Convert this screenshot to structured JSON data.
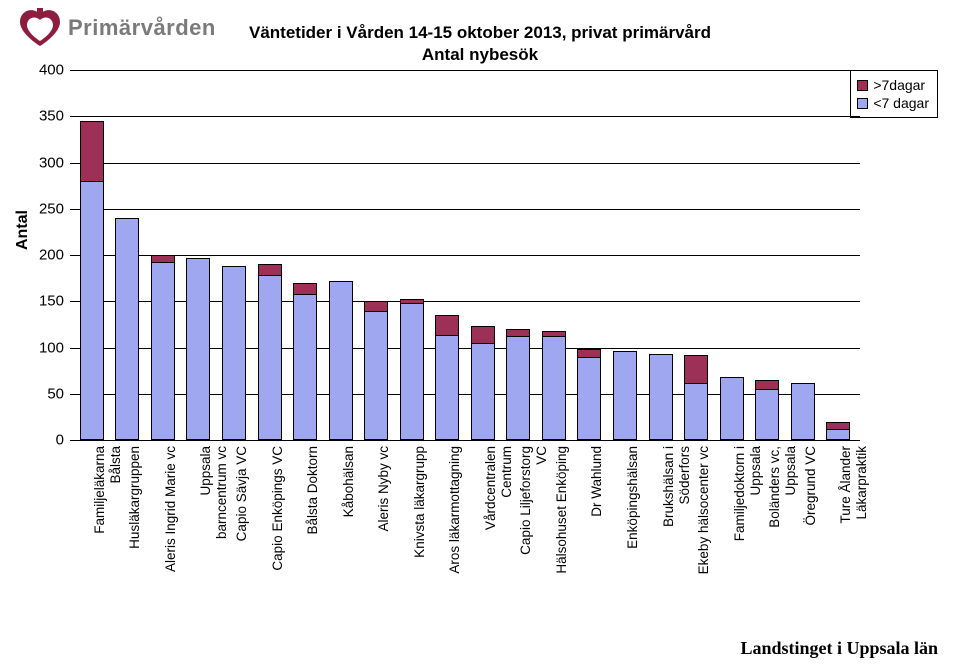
{
  "logo": {
    "text": "Primärvården",
    "color": "#7a7a7a",
    "icon_color": "#8c1d3f"
  },
  "title_line1": "Väntetider i Vården 14-15 oktober 2013, privat primärvård",
  "title_line2": "Antal nybesök",
  "legend": {
    "items": [
      {
        "label": ">7dagar",
        "color": "#9c3057"
      },
      {
        "label": "<7 dagar",
        "color": "#9ea7ef"
      }
    ]
  },
  "chart": {
    "type": "stacked-bar",
    "ylabel": "Antal",
    "ylim": [
      0,
      400
    ],
    "ytick_step": 50,
    "background_color": "#ffffff",
    "grid_color": "#000000",
    "bar_border_color": "#000000",
    "series_colors": {
      "lt7": "#9ea7ef",
      "gt7": "#9c3057"
    },
    "categories": [
      {
        "label": "Familjeläkarna\nBålsta",
        "lt7": 280,
        "gt7": 65
      },
      {
        "label": "Husläkargruppen",
        "lt7": 240,
        "gt7": 0
      },
      {
        "label": "Aleris Ingrid Marie vc",
        "lt7": 192,
        "gt7": 8
      },
      {
        "label": "Uppsala\nbarncentrum vc",
        "lt7": 197,
        "gt7": 0
      },
      {
        "label": "Capio Sävja VC",
        "lt7": 188,
        "gt7": 0
      },
      {
        "label": "Capio Enköpings VC",
        "lt7": 178,
        "gt7": 12
      },
      {
        "label": "Bålsta Doktorn",
        "lt7": 158,
        "gt7": 12
      },
      {
        "label": "Kåbohälsan",
        "lt7": 172,
        "gt7": 0
      },
      {
        "label": "Aleris Nyby vc",
        "lt7": 140,
        "gt7": 10
      },
      {
        "label": "Knivsta läkargrupp",
        "lt7": 148,
        "gt7": 4
      },
      {
        "label": "Aros läkarmottagning",
        "lt7": 113,
        "gt7": 22
      },
      {
        "label": "Vårdcentralen\nCentrum",
        "lt7": 105,
        "gt7": 18
      },
      {
        "label": "Capio Liljeforstorg\nVC",
        "lt7": 112,
        "gt7": 8
      },
      {
        "label": "Hälsohuset Enköping",
        "lt7": 112,
        "gt7": 6
      },
      {
        "label": "Dr Wahlund",
        "lt7": 90,
        "gt7": 8
      },
      {
        "label": "Enköpingshälsan",
        "lt7": 96,
        "gt7": 0
      },
      {
        "label": "Brukshälsan i\nSöderfors",
        "lt7": 93,
        "gt7": 0
      },
      {
        "label": "Ekeby hälsocenter vc",
        "lt7": 62,
        "gt7": 30
      },
      {
        "label": "Familjedoktorn i\nUppsala",
        "lt7": 68,
        "gt7": 0
      },
      {
        "label": "Boländers vc,\nUppsala",
        "lt7": 55,
        "gt7": 10
      },
      {
        "label": "Öregrund VC",
        "lt7": 62,
        "gt7": 0
      },
      {
        "label": "Ture Ålander\nLäkarpraktik",
        "lt7": 12,
        "gt7": 8
      }
    ]
  },
  "footer": "Landstinget i Uppsala län"
}
